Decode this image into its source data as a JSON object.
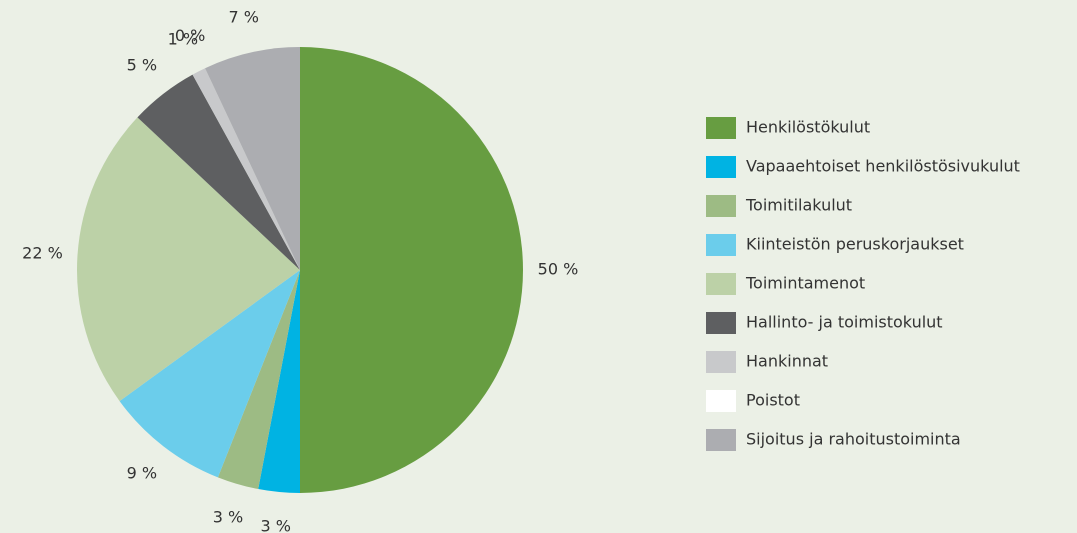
{
  "chart_data": {
    "type": "pie",
    "categories": [
      "Henkilöstökulut",
      "Vapaaehtoiset henkilöstösivukulut",
      "Toimitilakulut",
      "Kiinteistön peruskorjaukset",
      "Toimintamenot",
      "Hallinto- ja toimistokulut",
      "Hankinnat",
      "Poistot",
      "Sijoitus ja rahoitustoiminta"
    ],
    "values": [
      50,
      3,
      3,
      9,
      22,
      5,
      1,
      0,
      7
    ],
    "value_labels": [
      "50 %",
      "3 %",
      "3 %",
      "9 %",
      "22 %",
      "5 %",
      "1 %",
      "0 %",
      "7 %"
    ],
    "colors": [
      "#679d41",
      "#00b3e3",
      "#9dbb84",
      "#6bcdeb",
      "#bcd1a7",
      "#5e5f61",
      "#c8c9cb",
      "#ffffff",
      "#acadb1"
    ],
    "legend": "right"
  }
}
